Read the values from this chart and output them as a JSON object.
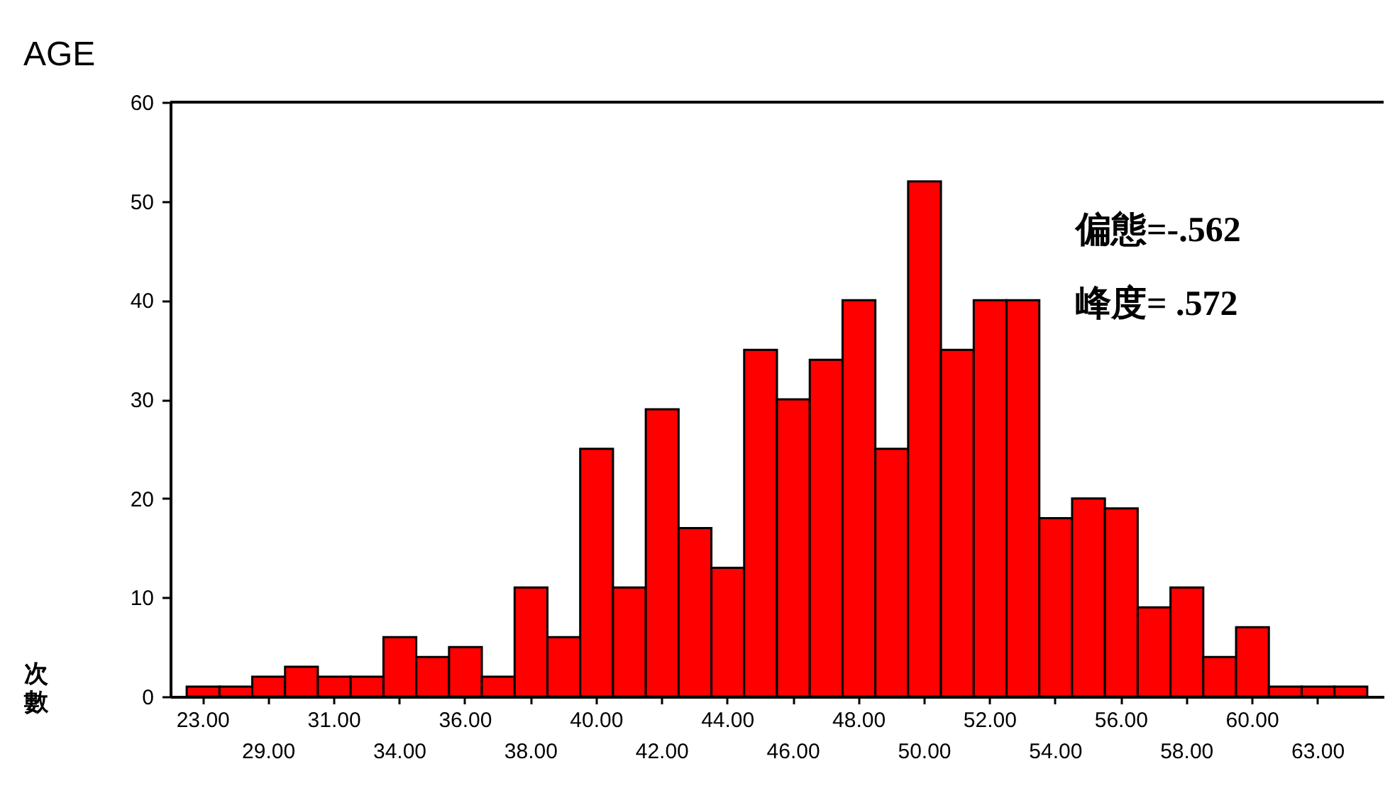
{
  "chart_data": {
    "type": "bar",
    "title": "AGE",
    "ylabel": "次數",
    "categories": [
      "23.00",
      null,
      "29.00",
      null,
      "31.00",
      null,
      "34.00",
      null,
      "36.00",
      null,
      "38.00",
      null,
      "40.00",
      null,
      "42.00",
      null,
      "44.00",
      null,
      "46.00",
      null,
      "48.00",
      null,
      "50.00",
      null,
      "52.00",
      null,
      "54.00",
      null,
      "56.00",
      null,
      "58.00",
      null,
      "60.00",
      null,
      "63.00",
      null
    ],
    "values": [
      1,
      1,
      2,
      3,
      2,
      2,
      6,
      4,
      5,
      2,
      11,
      6,
      25,
      11,
      29,
      17,
      13,
      35,
      30,
      34,
      40,
      25,
      52,
      35,
      40,
      40,
      18,
      20,
      19,
      9,
      11,
      4,
      7,
      1,
      1,
      1
    ],
    "color": "#ff0000",
    "ylim": [
      0,
      60
    ],
    "yticks": [
      0,
      10,
      20,
      30,
      40,
      50,
      60
    ],
    "annotations": [
      "偏態=-.562",
      "峰度= .572"
    ]
  }
}
